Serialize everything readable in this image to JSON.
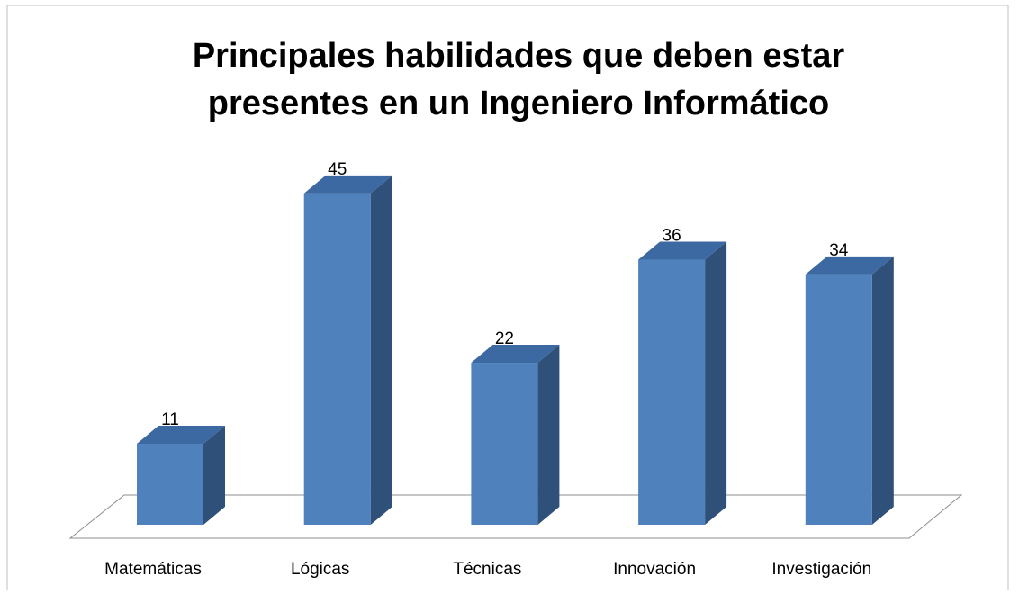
{
  "chart_data": {
    "type": "bar3d",
    "title": "Principales habilidades que deben estar presentes en un Ingeniero Informático",
    "categories": [
      "Matemáticas",
      "Lógicas",
      "Técnicas",
      "Innovación",
      "Investigación"
    ],
    "values": [
      11,
      45,
      22,
      36,
      34
    ],
    "color": "#4f81bd"
  }
}
